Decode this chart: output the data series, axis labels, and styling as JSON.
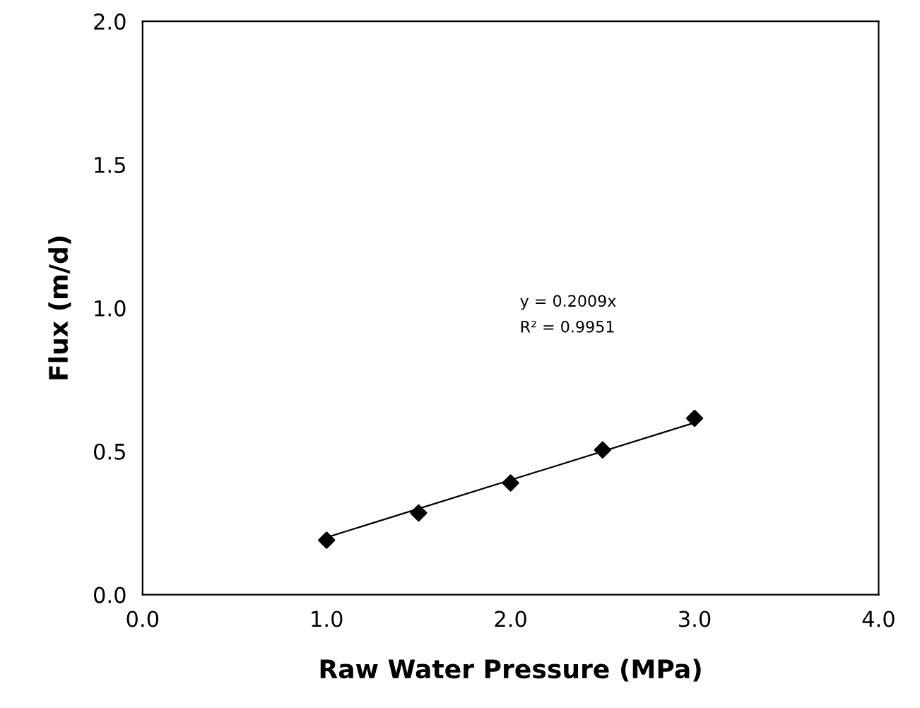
{
  "chart_data": {
    "type": "scatter",
    "xlabel": "Raw Water Pressure (MPa)",
    "ylabel": "Flux (m/d)",
    "x": [
      1.0,
      1.5,
      2.0,
      2.5,
      3.0
    ],
    "series": [
      {
        "color": "#000000",
        "marker": "diamond",
        "values": [
          0.19,
          0.285,
          0.39,
          0.505,
          0.615
        ]
      },
      {
        "type": "line",
        "color": "#000000",
        "marker": "none",
        "line_style": "solid",
        "x": [
          1.0,
          3.0
        ],
        "values": [
          0.2,
          0.6
        ]
      }
    ],
    "annotations": [
      "y = 0.2009x",
      "R² = 0.9951"
    ],
    "xlim": [
      0,
      4
    ],
    "ylim": [
      0,
      2
    ],
    "xticks": [
      {
        "value": 0,
        "label": "0.0"
      },
      {
        "value": 1,
        "label": "1.0"
      },
      {
        "value": 2,
        "label": "2.0"
      },
      {
        "value": 3,
        "label": "3.0"
      },
      {
        "value": 4,
        "label": "4.0"
      }
    ],
    "yticks": [
      {
        "value": 0,
        "label": "0.0"
      },
      {
        "value": 0.5,
        "label": "0.5"
      },
      {
        "value": 1,
        "label": "1.0"
      },
      {
        "value": 1.5,
        "label": "1.5"
      },
      {
        "value": 2,
        "label": "2.0"
      }
    ],
    "grid": false,
    "legend": false
  }
}
